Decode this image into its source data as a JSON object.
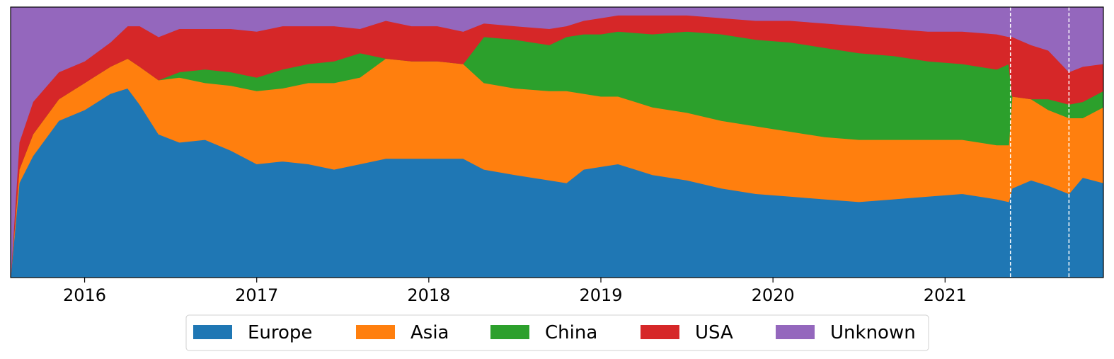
{
  "chart_data": {
    "type": "area",
    "stacked": true,
    "normalized": true,
    "title": "",
    "xlabel": "",
    "ylabel": "",
    "x_tick_labels": [
      "2016",
      "2017",
      "2018",
      "2019",
      "2020",
      "2021"
    ],
    "x_tick_values": [
      2016.0,
      2017.0,
      2018.0,
      2019.0,
      2020.0,
      2021.0
    ],
    "xlim": [
      2015.57,
      2021.92
    ],
    "ylim": [
      0,
      1
    ],
    "y_ticks_shown": false,
    "grid": false,
    "legend_position": "bottom-center",
    "vertical_markers": [
      2021.38,
      2021.72
    ],
    "x": [
      2015.57,
      2015.62,
      2015.7,
      2015.85,
      2016.0,
      2016.15,
      2016.25,
      2016.32,
      2016.43,
      2016.55,
      2016.7,
      2016.85,
      2017.0,
      2017.15,
      2017.3,
      2017.45,
      2017.6,
      2017.75,
      2017.9,
      2018.05,
      2018.2,
      2018.32,
      2018.5,
      2018.7,
      2018.8,
      2018.9,
      2019.0,
      2019.1,
      2019.3,
      2019.5,
      2019.7,
      2019.9,
      2020.1,
      2020.3,
      2020.5,
      2020.7,
      2020.9,
      2021.1,
      2021.3,
      2021.37,
      2021.39,
      2021.5,
      2021.6,
      2021.72,
      2021.8,
      2021.92
    ],
    "series": [
      {
        "name": "Europe",
        "color": "#1f77b4",
        "values": [
          0.0,
          0.35,
          0.45,
          0.58,
          0.62,
          0.68,
          0.7,
          0.64,
          0.53,
          0.5,
          0.51,
          0.47,
          0.42,
          0.43,
          0.42,
          0.4,
          0.42,
          0.44,
          0.44,
          0.44,
          0.44,
          0.4,
          0.38,
          0.36,
          0.35,
          0.4,
          0.41,
          0.42,
          0.38,
          0.36,
          0.33,
          0.31,
          0.3,
          0.29,
          0.28,
          0.29,
          0.3,
          0.31,
          0.29,
          0.28,
          0.33,
          0.36,
          0.34,
          0.31,
          0.37,
          0.35
        ]
      },
      {
        "name": "Asia",
        "color": "#ff7f0e",
        "values": [
          0.0,
          0.05,
          0.08,
          0.08,
          0.1,
          0.1,
          0.11,
          0.14,
          0.2,
          0.24,
          0.21,
          0.24,
          0.27,
          0.27,
          0.3,
          0.32,
          0.32,
          0.37,
          0.36,
          0.36,
          0.35,
          0.32,
          0.32,
          0.33,
          0.34,
          0.28,
          0.26,
          0.25,
          0.25,
          0.25,
          0.25,
          0.25,
          0.24,
          0.23,
          0.23,
          0.22,
          0.21,
          0.2,
          0.2,
          0.21,
          0.34,
          0.3,
          0.28,
          0.28,
          0.22,
          0.28
        ]
      },
      {
        "name": "China",
        "color": "#2ca02c",
        "values": [
          0.0,
          0.0,
          0.0,
          0.0,
          0.0,
          0.0,
          0.0,
          0.0,
          0.0,
          0.02,
          0.05,
          0.05,
          0.05,
          0.07,
          0.07,
          0.08,
          0.09,
          0.0,
          0.0,
          0.0,
          0.0,
          0.17,
          0.18,
          0.17,
          0.2,
          0.22,
          0.23,
          0.24,
          0.27,
          0.3,
          0.32,
          0.32,
          0.33,
          0.33,
          0.32,
          0.31,
          0.29,
          0.28,
          0.28,
          0.3,
          0.0,
          0.0,
          0.04,
          0.05,
          0.06,
          0.06
        ]
      },
      {
        "name": "USA",
        "color": "#d62728",
        "values": [
          0.0,
          0.1,
          0.12,
          0.1,
          0.08,
          0.09,
          0.12,
          0.15,
          0.16,
          0.16,
          0.15,
          0.16,
          0.17,
          0.16,
          0.14,
          0.13,
          0.09,
          0.14,
          0.13,
          0.13,
          0.12,
          0.05,
          0.05,
          0.06,
          0.04,
          0.05,
          0.06,
          0.06,
          0.07,
          0.06,
          0.06,
          0.07,
          0.08,
          0.09,
          0.1,
          0.1,
          0.11,
          0.12,
          0.13,
          0.1,
          0.22,
          0.2,
          0.18,
          0.12,
          0.13,
          0.1
        ]
      },
      {
        "name": "Unknown",
        "color": "#9467bd",
        "values": [
          1.0,
          0.5,
          0.35,
          0.24,
          0.2,
          0.13,
          0.07,
          0.07,
          0.11,
          0.08,
          0.08,
          0.08,
          0.09,
          0.07,
          0.07,
          0.07,
          0.08,
          0.05,
          0.07,
          0.07,
          0.09,
          0.06,
          0.07,
          0.08,
          0.07,
          0.05,
          0.04,
          0.03,
          0.03,
          0.03,
          0.04,
          0.05,
          0.05,
          0.06,
          0.07,
          0.08,
          0.09,
          0.09,
          0.1,
          0.11,
          0.11,
          0.14,
          0.16,
          0.24,
          0.22,
          0.21
        ]
      }
    ]
  }
}
